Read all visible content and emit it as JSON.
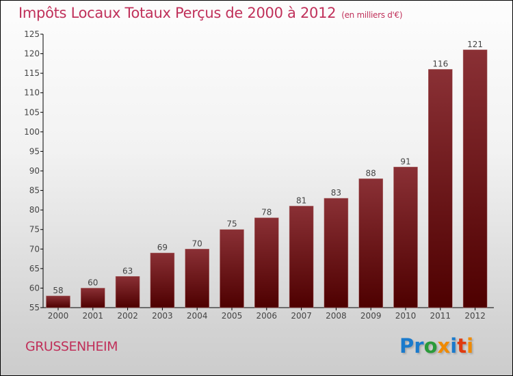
{
  "chart_data": {
    "type": "bar",
    "title": "Impôts Locaux Totaux Perçus de 2000 à 2012",
    "subtitle": "(en milliers d'€)",
    "categories": [
      "2000",
      "2001",
      "2002",
      "2003",
      "2004",
      "2005",
      "2006",
      "2007",
      "2008",
      "2009",
      "2010",
      "2011",
      "2012"
    ],
    "values": [
      58,
      60,
      63,
      69,
      70,
      75,
      78,
      81,
      83,
      88,
      91,
      116,
      121
    ],
    "xlabel": "",
    "ylabel": "",
    "ylim": [
      55,
      125
    ],
    "yticks": [
      55,
      60,
      65,
      70,
      75,
      80,
      85,
      90,
      95,
      100,
      105,
      110,
      115,
      120,
      125
    ],
    "grid": false,
    "bar_color": "#7a1a1f"
  },
  "city": "GRUSSENHEIM",
  "logo": {
    "text": "Proxiti",
    "colors": [
      "#1a7acc",
      "#1a7acc",
      "#2a9a3a",
      "#f08a00",
      "#1a7acc",
      "#e03a10",
      "#f08a00",
      "#2a9a3a"
    ]
  }
}
